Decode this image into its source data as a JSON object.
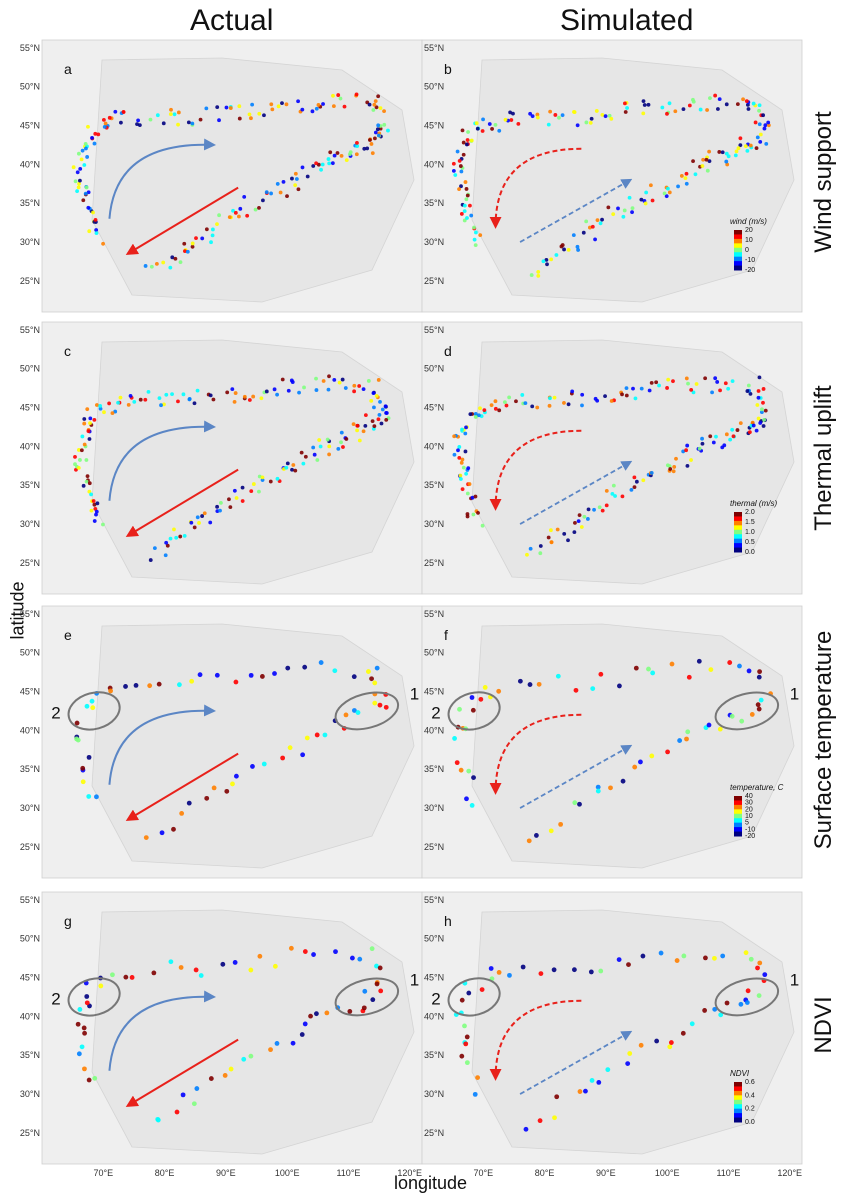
{
  "columns": [
    "Actual",
    "Simulated"
  ],
  "rows": [
    "Wind support",
    "Thermal uplift",
    "Surface temperature",
    "NDVI"
  ],
  "x_axis_label": "longitude",
  "y_axis_label": "latitude",
  "panel_letters": [
    "a",
    "b",
    "c",
    "d",
    "e",
    "f",
    "g",
    "h"
  ],
  "lat_ticks": [
    "55°N",
    "50°N",
    "45°N",
    "40°N",
    "35°N",
    "30°N",
    "25°N"
  ],
  "lon_ticks": [
    "70°E",
    "80°E",
    "90°E",
    "100°E",
    "110°E",
    "120°E"
  ],
  "region_labels": [
    "1",
    "2"
  ],
  "legends": [
    {
      "row": 0,
      "title": "wind (m/s)",
      "ticks": [
        "20",
        "10",
        "0",
        "-10",
        "-20"
      ]
    },
    {
      "row": 1,
      "title": "thermal (m/s)",
      "ticks": [
        "2.0",
        "1.5",
        "1.0",
        "0.5",
        "0.0"
      ]
    },
    {
      "row": 2,
      "title": "temperature, C",
      "ticks": [
        "40",
        "30",
        "20",
        "10",
        "5",
        "-10",
        "-20"
      ]
    },
    {
      "row": 3,
      "title": "NDVI",
      "ticks": [
        "0.6",
        "0.4",
        "0.2",
        "0.0"
      ]
    }
  ],
  "colors": {
    "map_bg": "#efefef",
    "land": "#e6e6e6",
    "arrow_actual_autumn": "#5b86c5",
    "arrow_actual_spring": "#e8211b",
    "colormap": [
      "#00007f",
      "#0000ff",
      "#0080ff",
      "#00ffff",
      "#80ff80",
      "#ffff00",
      "#ff8000",
      "#ff0000",
      "#7f0000"
    ]
  },
  "chart_data": {
    "type": "scatter",
    "x_unit": "degrees East longitude",
    "y_unit": "degrees North latitude",
    "xlim": [
      60,
      122
    ],
    "ylim": [
      21,
      56
    ],
    "grid": false,
    "track_samples": [
      {
        "x": 78,
        "y": 26
      },
      {
        "x": 85,
        "y": 30
      },
      {
        "x": 92,
        "y": 34
      },
      {
        "x": 100,
        "y": 37
      },
      {
        "x": 106,
        "y": 40
      },
      {
        "x": 112,
        "y": 42
      },
      {
        "x": 116,
        "y": 44
      },
      {
        "x": 114,
        "y": 48
      },
      {
        "x": 104,
        "y": 48
      },
      {
        "x": 94,
        "y": 47
      },
      {
        "x": 84,
        "y": 46
      },
      {
        "x": 74,
        "y": 46
      },
      {
        "x": 68,
        "y": 44
      },
      {
        "x": 66,
        "y": 40
      },
      {
        "x": 67,
        "y": 35
      },
      {
        "x": 69,
        "y": 30
      }
    ],
    "annotations": [
      "1",
      "2"
    ]
  }
}
